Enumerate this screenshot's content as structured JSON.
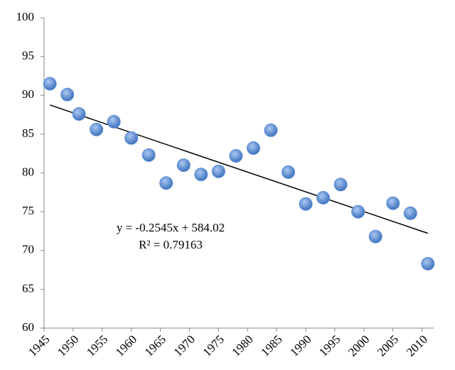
{
  "chart_data": {
    "type": "scatter",
    "x": [
      1946,
      1949,
      1951,
      1954,
      1957,
      1960,
      1963,
      1966,
      1969,
      1972,
      1975,
      1978,
      1981,
      1984,
      1987,
      1990,
      1993,
      1996,
      1999,
      2002,
      2005,
      2008,
      2011
    ],
    "values": [
      91.5,
      90.1,
      87.6,
      85.6,
      86.6,
      84.5,
      82.3,
      78.7,
      81.0,
      79.8,
      80.2,
      82.2,
      83.2,
      85.5,
      80.1,
      76.0,
      76.8,
      78.5,
      75.0,
      71.8,
      76.1,
      74.8,
      68.3
    ],
    "color": "#5b8fd6",
    "trendline": {
      "x": [
        1946,
        2011
      ],
      "values": [
        88.76,
        72.22
      ],
      "equation": "y = -0.2545x + 584.02",
      "r_squared": "R² = 0.79163"
    },
    "xlim": [
      1945,
      2012
    ],
    "xticks": [
      1945,
      1950,
      1955,
      1960,
      1965,
      1970,
      1975,
      1980,
      1985,
      1990,
      1995,
      2000,
      2005,
      2010
    ],
    "ylim": [
      60,
      100
    ],
    "yticks": [
      60,
      65,
      70,
      75,
      80,
      85,
      90,
      95,
      100
    ]
  }
}
